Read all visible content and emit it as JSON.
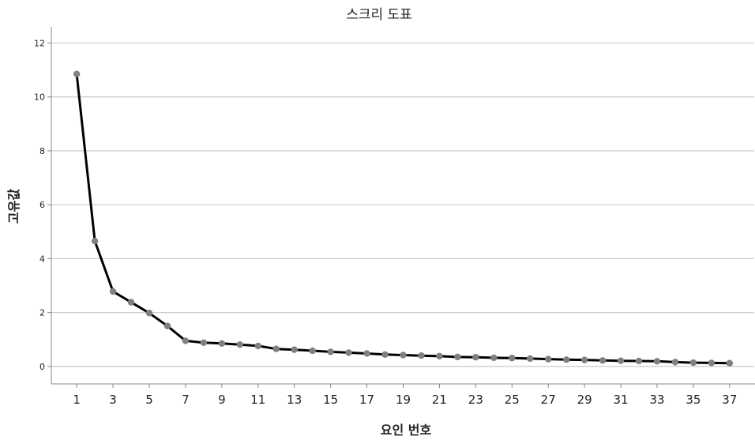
{
  "chart_data": {
    "type": "line",
    "title": "스크리 도표",
    "xlabel": "요인 번호",
    "ylabel": "고유값",
    "x": [
      1,
      2,
      3,
      4,
      5,
      6,
      7,
      8,
      9,
      10,
      11,
      12,
      13,
      14,
      15,
      16,
      17,
      18,
      19,
      20,
      21,
      22,
      23,
      24,
      25,
      26,
      27,
      28,
      29,
      30,
      31,
      32,
      33,
      34,
      35,
      36,
      37
    ],
    "values": [
      10.85,
      4.65,
      2.78,
      2.38,
      1.98,
      1.5,
      0.95,
      0.88,
      0.85,
      0.81,
      0.76,
      0.65,
      0.62,
      0.58,
      0.54,
      0.51,
      0.48,
      0.44,
      0.42,
      0.4,
      0.38,
      0.35,
      0.34,
      0.32,
      0.31,
      0.29,
      0.27,
      0.25,
      0.24,
      0.22,
      0.21,
      0.2,
      0.19,
      0.16,
      0.14,
      0.13,
      0.12
    ],
    "x_ticks": [
      "1",
      "3",
      "5",
      "7",
      "9",
      "11",
      "13",
      "15",
      "17",
      "19",
      "21",
      "23",
      "25",
      "27",
      "29",
      "31",
      "33",
      "35",
      "37"
    ],
    "y_ticks": [
      "0",
      "2",
      "4",
      "6",
      "8",
      "10",
      "12"
    ],
    "xlim": [
      -0.4,
      38.4
    ],
    "ylim": [
      -0.65,
      12.6
    ],
    "grid": "horizontal",
    "line_color": "#000000",
    "marker_color": "#808080",
    "grid_color": "#cfcfcf"
  }
}
